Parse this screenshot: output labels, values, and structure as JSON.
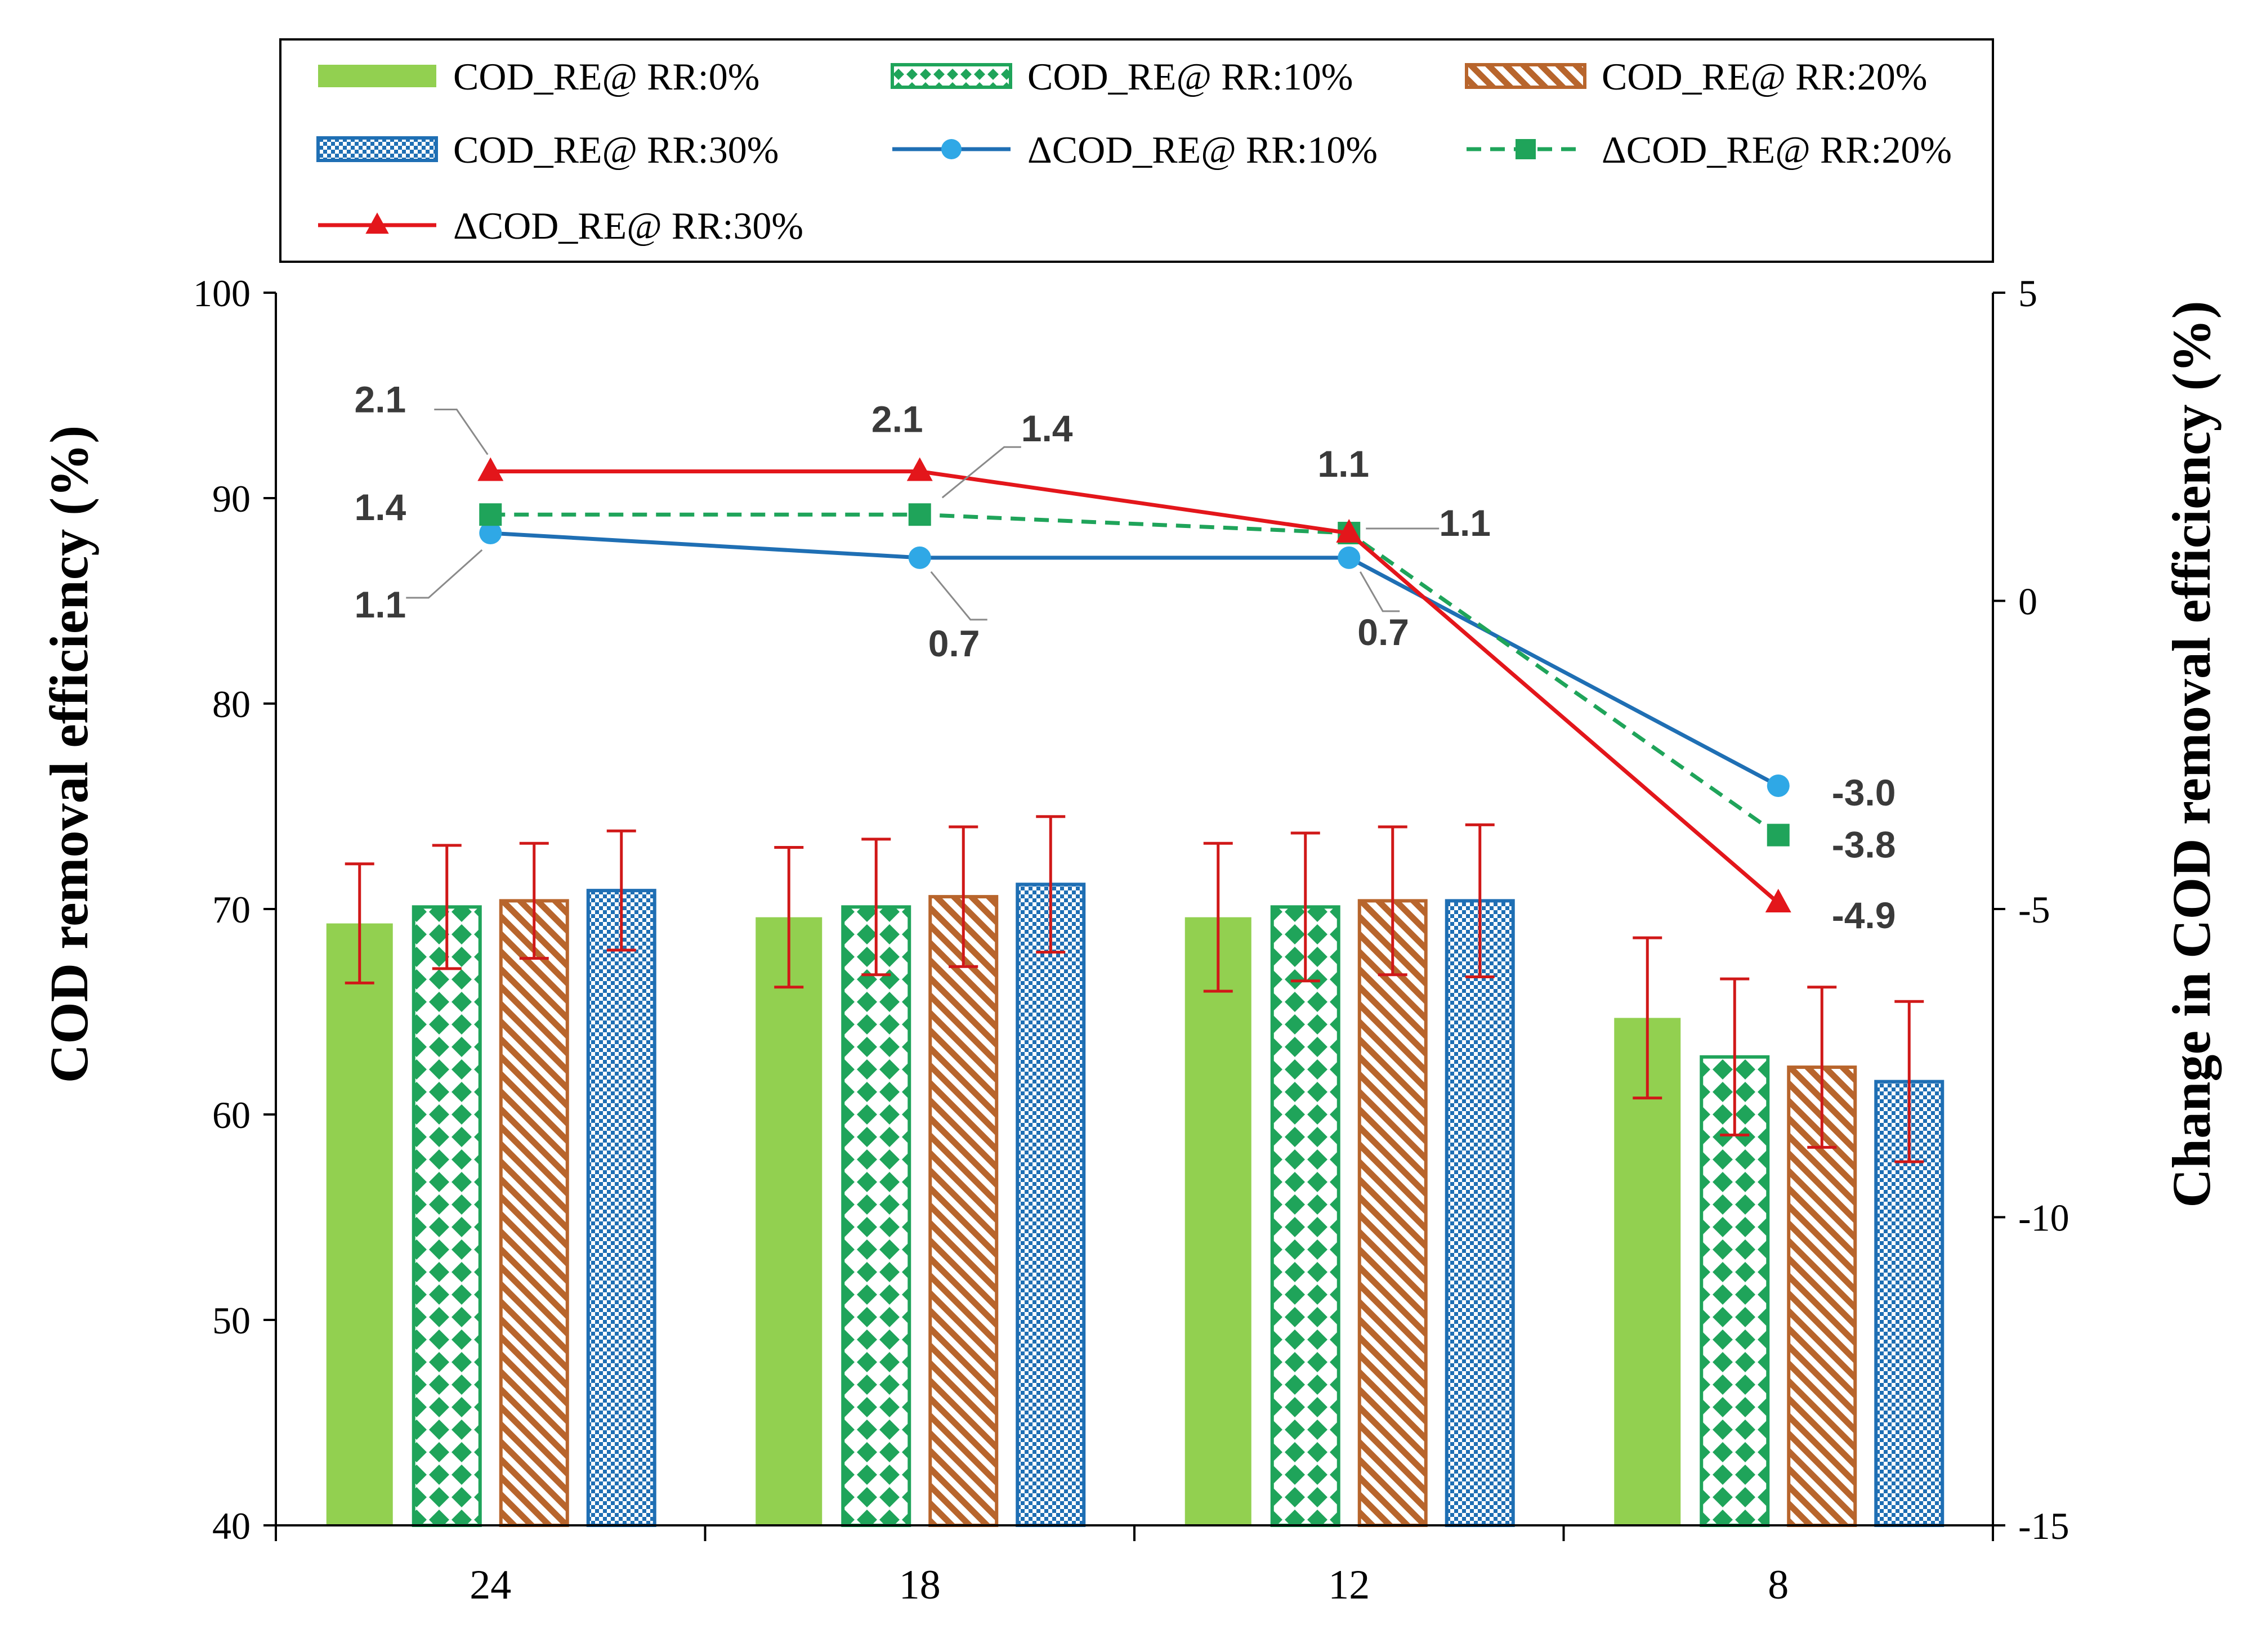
{
  "chart_data": {
    "type": "bar",
    "categories": [
      "24",
      "18",
      "12",
      "8"
    ],
    "left_axis": {
      "label": "COD removal efficiency (%)",
      "ylim": [
        40,
        100
      ],
      "ticks": [
        "40",
        "50",
        "60",
        "70",
        "80",
        "90",
        "100"
      ]
    },
    "right_axis": {
      "label": "Change in COD removal efficiency (%)",
      "ylim": [
        -15,
        5
      ],
      "ticks": [
        "-15",
        "-10",
        "-5",
        "0",
        "5"
      ]
    },
    "bar_series": [
      {
        "name": "COD_RE@ RR:0%",
        "pattern": "solid",
        "color": "#92D050",
        "values": [
          69.3,
          69.6,
          69.6,
          64.7
        ],
        "errors": [
          2.9,
          3.4,
          3.6,
          3.9
        ]
      },
      {
        "name": "COD_RE@ RR:10%",
        "pattern": "diamond",
        "color": "#1FA45A",
        "values": [
          70.1,
          70.1,
          70.1,
          62.8
        ],
        "errors": [
          3.0,
          3.3,
          3.6,
          3.8
        ]
      },
      {
        "name": "COD_RE@ RR:20%",
        "pattern": "diagonal",
        "color": "#B8652C",
        "values": [
          70.4,
          70.6,
          70.4,
          62.3
        ],
        "errors": [
          2.8,
          3.4,
          3.6,
          3.9
        ]
      },
      {
        "name": "COD_RE@ RR:30%",
        "pattern": "check",
        "color": "#1F6FB4",
        "values": [
          70.9,
          71.2,
          70.4,
          61.6
        ],
        "errors": [
          2.9,
          3.3,
          3.7,
          3.9
        ]
      }
    ],
    "line_series": [
      {
        "name": "ΔCOD_RE@ RR:10%",
        "marker": "circle",
        "color": "#1F6FB4",
        "marker_color": "#2FA8E6",
        "dash": "solid",
        "values": [
          1.1,
          0.7,
          0.7,
          -3.0
        ],
        "labels": [
          "1.1",
          "0.7",
          "0.7",
          "-3.0"
        ]
      },
      {
        "name": "ΔCOD_RE@ RR:20%",
        "marker": "square",
        "color": "#1FA45A",
        "marker_color": "#1FA45A",
        "dash": "dashed",
        "values": [
          1.4,
          1.4,
          1.1,
          -3.8
        ],
        "labels": [
          "1.4",
          "1.4",
          "1.1",
          "-3.8"
        ]
      },
      {
        "name": "ΔCOD_RE@ RR:30%",
        "marker": "triangle",
        "color": "#E3161B",
        "marker_color": "#E3161B",
        "dash": "solid",
        "values": [
          2.1,
          2.1,
          1.1,
          -4.9
        ],
        "labels": [
          "2.1",
          "2.1",
          "1.1",
          "-4.9"
        ]
      }
    ],
    "legend": {
      "placement": "top",
      "columns": 3
    },
    "error_bar_color": "#D01818"
  }
}
